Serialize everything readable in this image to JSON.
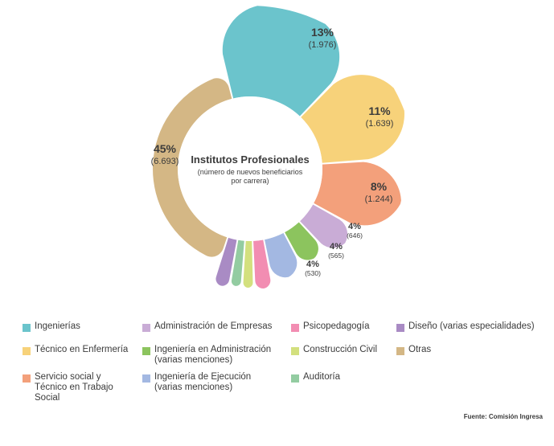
{
  "chart_data": {
    "type": "pie",
    "title": "Institutos Profesionales",
    "subtitle_lines": [
      "(número de nuevos beneficiarios",
      "por carrera)"
    ],
    "slices": [
      {
        "name": "Ingenierías",
        "value": 1976,
        "percent": 13,
        "pct_label": "13%",
        "value_label": "(1.976)",
        "color": "#6bc4cc"
      },
      {
        "name": "Técnico en Enfermería",
        "value": 1639,
        "percent": 11,
        "pct_label": "11%",
        "value_label": "(1.639)",
        "color": "#f7d27a"
      },
      {
        "name": "Servicio social y Técnico en Trabajo Social",
        "value": 1244,
        "percent": 8,
        "pct_label": "8%",
        "value_label": "(1.244)",
        "color": "#f3a07b"
      },
      {
        "name": "Administración de Empresas",
        "value": 646,
        "percent": 4,
        "pct_label": "4%",
        "value_label": "(646)",
        "color": "#c9acd6"
      },
      {
        "name": "Ingeniería en Administración (varias menciones)",
        "value": 565,
        "percent": 4,
        "pct_label": "4%",
        "value_label": "(565)",
        "color": "#8cc45e"
      },
      {
        "name": "Ingeniería de Ejecución (varias menciones)",
        "value": 530,
        "percent": 4,
        "pct_label": "4%",
        "value_label": "(530)",
        "color": "#a3b8e2"
      },
      {
        "name": "Psicopedagogía",
        "value": null,
        "percent": null,
        "pct_label": "",
        "value_label": "",
        "color": "#f28db2"
      },
      {
        "name": "Construcción Civil",
        "value": null,
        "percent": null,
        "pct_label": "",
        "value_label": "",
        "color": "#d3e07e"
      },
      {
        "name": "Auditoría",
        "value": null,
        "percent": null,
        "pct_label": "",
        "value_label": "",
        "color": "#93cca1"
      },
      {
        "name": "Diseño (varias especialidades)",
        "value": null,
        "percent": null,
        "pct_label": "",
        "value_label": "",
        "color": "#a98bc4"
      },
      {
        "name": "Otras",
        "value": 6693,
        "percent": 45,
        "pct_label": "45%",
        "value_label": "(6.693)",
        "color": "#d4b785"
      }
    ],
    "legend_placement": "bottom"
  },
  "legend": {
    "items": [
      {
        "label": "Ingenierías",
        "color": "#6bc4cc"
      },
      {
        "label": "Administración de Empresas",
        "color": "#c9acd6"
      },
      {
        "label": "Psicopedagogía",
        "color": "#f28db2"
      },
      {
        "label": "Diseño (varias especialidades)",
        "color": "#a98bc4"
      },
      {
        "label": "Técnico en Enfermería",
        "color": "#f7d27a"
      },
      {
        "label": "Ingeniería en Administración\n(varias menciones)",
        "color": "#8cc45e"
      },
      {
        "label": "Construcción Civil",
        "color": "#d3e07e"
      },
      {
        "label": "Otras",
        "color": "#d4b785"
      },
      {
        "label": "Servicio social y\nTécnico en Trabajo\nSocial",
        "color": "#f3a07b"
      },
      {
        "label": "Ingeniería de Ejecución\n(varias menciones)",
        "color": "#a3b8e2"
      },
      {
        "label": "Auditoría",
        "color": "#93cca1"
      }
    ]
  },
  "source": "Fuente: Comisión Ingresa"
}
